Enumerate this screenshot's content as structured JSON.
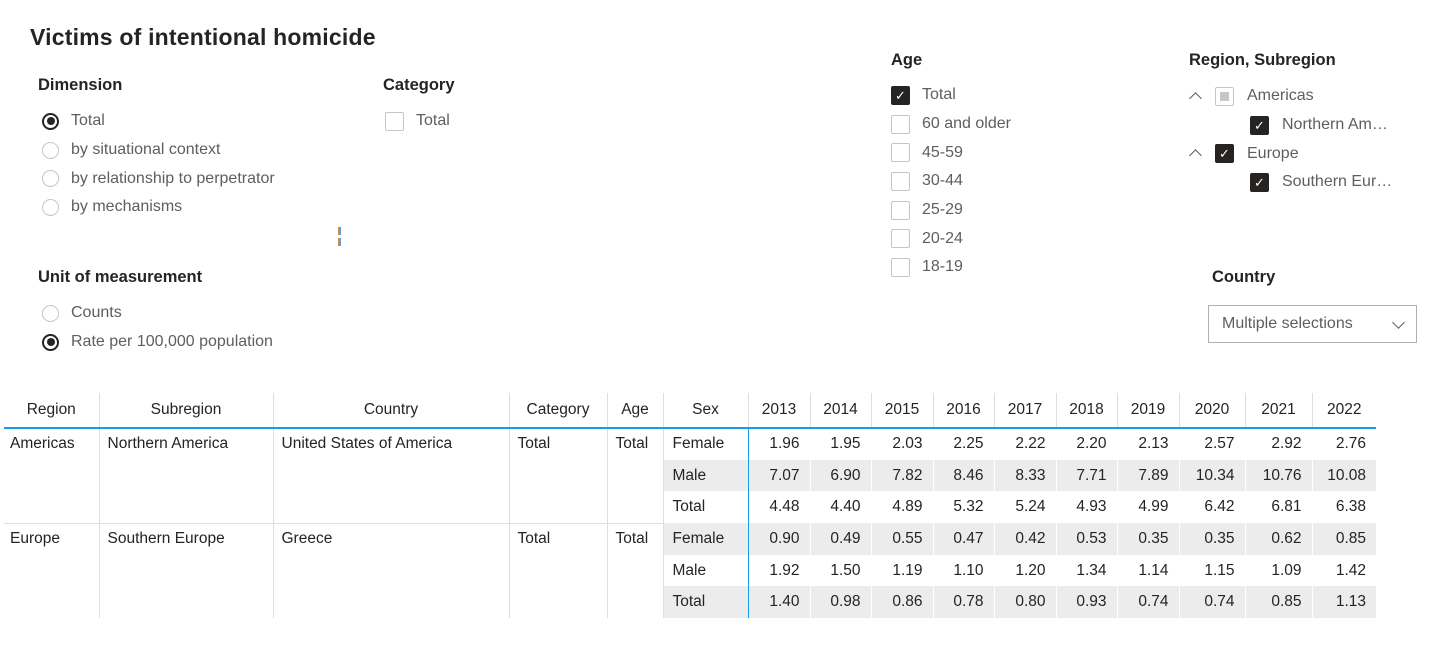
{
  "title": "Victims of intentional homicide",
  "colors": {
    "accent_blue": "#149BEB",
    "gridline": "#DEDEDE",
    "alt_row": "#ECECEC",
    "checkbox_dark": "#252423",
    "label_gray": "#605E5C"
  },
  "filters": {
    "dimension": {
      "label": "Dimension",
      "type": "radio",
      "options": [
        {
          "label": "Total",
          "selected": true
        },
        {
          "label": "by situational context",
          "selected": false
        },
        {
          "label": "by relationship to perpetrator",
          "selected": false
        },
        {
          "label": "by mechanisms",
          "selected": false
        }
      ]
    },
    "category": {
      "label": "Category",
      "type": "checkbox",
      "options": [
        {
          "label": "Total",
          "checked": false
        }
      ]
    },
    "unit": {
      "label": "Unit of measurement",
      "type": "radio",
      "options": [
        {
          "label": "Counts",
          "selected": false
        },
        {
          "label": "Rate per 100,000 population",
          "selected": true
        }
      ]
    },
    "age": {
      "label": "Age",
      "type": "checkbox",
      "options": [
        {
          "label": "Total",
          "checked": true
        },
        {
          "label": "60 and older",
          "checked": false
        },
        {
          "label": "45-59",
          "checked": false
        },
        {
          "label": "30-44",
          "checked": false
        },
        {
          "label": "25-29",
          "checked": false
        },
        {
          "label": "20-24",
          "checked": false
        },
        {
          "label": "18-19",
          "checked": false
        }
      ]
    },
    "region": {
      "label": "Region, Subregion",
      "tree": [
        {
          "label": "Americas",
          "state": "partial",
          "expanded": true,
          "children": [
            {
              "label": "Northern Am…",
              "checked": true
            }
          ]
        },
        {
          "label": "Europe",
          "state": "checked",
          "expanded": true,
          "children": [
            {
              "label": "Southern Eur…",
              "checked": true
            }
          ]
        }
      ]
    },
    "country": {
      "label": "Country",
      "value": "Multiple selections",
      "dropdown_icon": "chevron-down-icon"
    }
  },
  "table": {
    "headers": [
      "Region",
      "Subregion",
      "Country",
      "Category",
      "Age",
      "Sex"
    ],
    "years": [
      "2013",
      "2014",
      "2015",
      "2016",
      "2017",
      "2018",
      "2019",
      "2020",
      "2021",
      "2022"
    ],
    "groups": [
      {
        "region": "Americas",
        "subregion": "Northern America",
        "country": "United States of America",
        "category": "Total",
        "age": "Total",
        "rows": [
          {
            "sex": "Female",
            "values": [
              "1.96",
              "1.95",
              "2.03",
              "2.25",
              "2.22",
              "2.20",
              "2.13",
              "2.57",
              "2.92",
              "2.76"
            ]
          },
          {
            "sex": "Male",
            "values": [
              "7.07",
              "6.90",
              "7.82",
              "8.46",
              "8.33",
              "7.71",
              "7.89",
              "10.34",
              "10.76",
              "10.08"
            ]
          },
          {
            "sex": "Total",
            "values": [
              "4.48",
              "4.40",
              "4.89",
              "5.32",
              "5.24",
              "4.93",
              "4.99",
              "6.42",
              "6.81",
              "6.38"
            ]
          }
        ]
      },
      {
        "region": "Europe",
        "subregion": "Southern Europe",
        "country": "Greece",
        "category": "Total",
        "age": "Total",
        "rows": [
          {
            "sex": "Female",
            "values": [
              "0.90",
              "0.49",
              "0.55",
              "0.47",
              "0.42",
              "0.53",
              "0.35",
              "0.35",
              "0.62",
              "0.85"
            ]
          },
          {
            "sex": "Male",
            "values": [
              "1.92",
              "1.50",
              "1.19",
              "1.10",
              "1.20",
              "1.34",
              "1.14",
              "1.15",
              "1.09",
              "1.42"
            ]
          },
          {
            "sex": "Total",
            "values": [
              "1.40",
              "0.98",
              "0.86",
              "0.78",
              "0.80",
              "0.93",
              "0.74",
              "0.74",
              "0.85",
              "1.13"
            ]
          }
        ]
      }
    ]
  }
}
